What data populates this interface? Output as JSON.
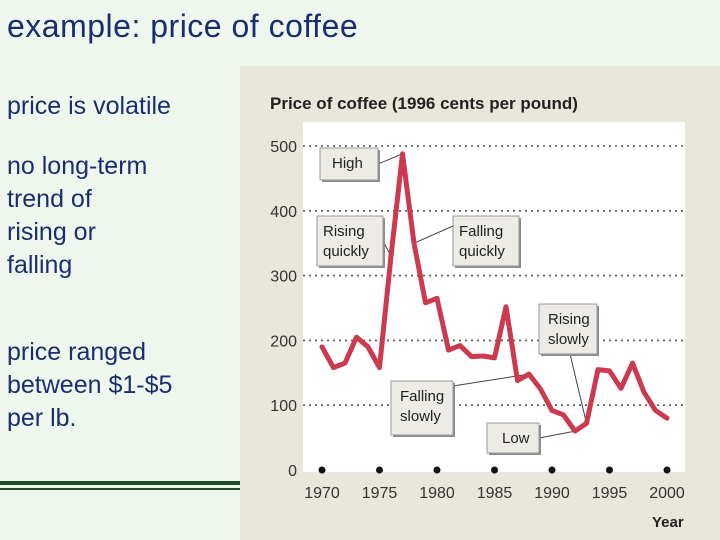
{
  "slide": {
    "title": "example:  price of coffee",
    "bullets": [
      "price is volatile",
      "no long-term\ntrend of\nrising or\nfalling",
      "price ranged\nbetween $1-$5\nper lb."
    ]
  },
  "colors": {
    "line": "#cc3a4f",
    "title_text": "#1a2e6e",
    "rule": "#1f4d1f",
    "chart_bg": "#e9e6db"
  },
  "chart_data": {
    "type": "line",
    "title": "Price of coffee (1996 cents per pound)",
    "xlabel": "Year",
    "ylabel": "",
    "xlim": [
      1970,
      2000
    ],
    "ylim": [
      0,
      500
    ],
    "xticks": [
      1970,
      1975,
      1980,
      1985,
      1990,
      1995,
      2000
    ],
    "xtick_labels": [
      "1970",
      "1975",
      "1980",
      "1985",
      "1990",
      "1995",
      "2000"
    ],
    "yticks": [
      0,
      100,
      200,
      300,
      400,
      500
    ],
    "ytick_labels": [
      "0",
      "100",
      "200",
      "300",
      "400",
      "500"
    ],
    "grid": "horizontal dotted",
    "series": [
      {
        "values": [
          [
            1970,
            190
          ],
          [
            1971,
            158
          ],
          [
            1972,
            165
          ],
          [
            1973,
            205
          ],
          [
            1974,
            190
          ],
          [
            1975,
            158
          ],
          [
            1976,
            330
          ],
          [
            1977,
            488
          ],
          [
            1978,
            350
          ],
          [
            1979,
            258
          ],
          [
            1980,
            265
          ],
          [
            1981,
            185
          ],
          [
            1982,
            192
          ],
          [
            1983,
            175
          ],
          [
            1984,
            176
          ],
          [
            1985,
            173
          ],
          [
            1986,
            252
          ],
          [
            1987,
            138
          ],
          [
            1988,
            148
          ],
          [
            1989,
            125
          ],
          [
            1990,
            92
          ],
          [
            1991,
            85
          ],
          [
            1992,
            60
          ],
          [
            1993,
            72
          ],
          [
            1994,
            155
          ],
          [
            1995,
            153
          ],
          [
            1996,
            126
          ],
          [
            1997,
            165
          ],
          [
            1998,
            120
          ],
          [
            1999,
            92
          ],
          [
            2000,
            80
          ]
        ]
      }
    ],
    "annotations": [
      {
        "text": "High",
        "points_to": [
          1977,
          488
        ]
      },
      {
        "text": "Rising\nquickly",
        "points_to": [
          1976,
          330
        ]
      },
      {
        "text": "Falling\nquickly",
        "points_to": [
          1978,
          350
        ]
      },
      {
        "text": "Rising\nslowly",
        "points_to": [
          1993,
          72
        ]
      },
      {
        "text": "Falling\nslowly",
        "points_to": [
          1988,
          148
        ]
      },
      {
        "text": "Low",
        "points_to": [
          1992,
          60
        ]
      }
    ]
  }
}
